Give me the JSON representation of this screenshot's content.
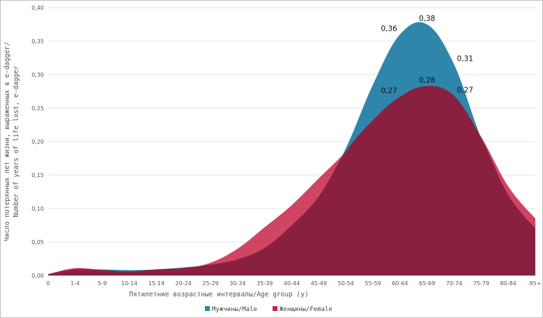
{
  "chart_data": {
    "type": "area",
    "title": "",
    "xlabel": "Пятилетние возрастные интервалы/Age group (y)",
    "ylabel_line1": "Число потерянных лет жизни, выраженных в e-dagger/",
    "ylabel_line2": "Number of years of life lost, e-dagger",
    "categories": [
      "0",
      "1-4",
      "5-9",
      "10-14",
      "15-19",
      "20-24",
      "25-29",
      "30-34",
      "35-39",
      "40-44",
      "45-49",
      "50-54",
      "55-59",
      "60-64",
      "65-69",
      "70-74",
      "75-79",
      "80-84",
      "85+"
    ],
    "ylim": [
      0,
      0.4
    ],
    "yticks": [
      "0,00",
      "0,05",
      "0,10",
      "0,15",
      "0,20",
      "0,25",
      "0,30",
      "0,35",
      "0,40"
    ],
    "grid": true,
    "legend_position": "bottom",
    "series": [
      {
        "name": "Мужчины/Male",
        "color": "#2e86ab",
        "values": [
          0.002,
          0.009,
          0.009,
          0.008,
          0.009,
          0.012,
          0.016,
          0.024,
          0.041,
          0.075,
          0.118,
          0.19,
          0.285,
          0.36,
          0.375,
          0.315,
          0.205,
          0.12,
          0.07
        ]
      },
      {
        "name": "Женщины/Female",
        "color": "#c8254a",
        "values": [
          0.002,
          0.011,
          0.008,
          0.006,
          0.009,
          0.011,
          0.019,
          0.04,
          0.072,
          0.105,
          0.145,
          0.185,
          0.232,
          0.267,
          0.283,
          0.268,
          0.207,
          0.133,
          0.085
        ]
      }
    ],
    "data_labels": [
      {
        "series": 0,
        "category": "60-64",
        "text": "0,36"
      },
      {
        "series": 0,
        "category": "65-69",
        "text": "0,38"
      },
      {
        "series": 0,
        "category": "70-74",
        "text": "0,31"
      },
      {
        "series": 1,
        "category": "60-64",
        "text": "0,27"
      },
      {
        "series": 1,
        "category": "65-69",
        "text": "0,28"
      },
      {
        "series": 1,
        "category": "70-74",
        "text": "0,27"
      }
    ]
  }
}
